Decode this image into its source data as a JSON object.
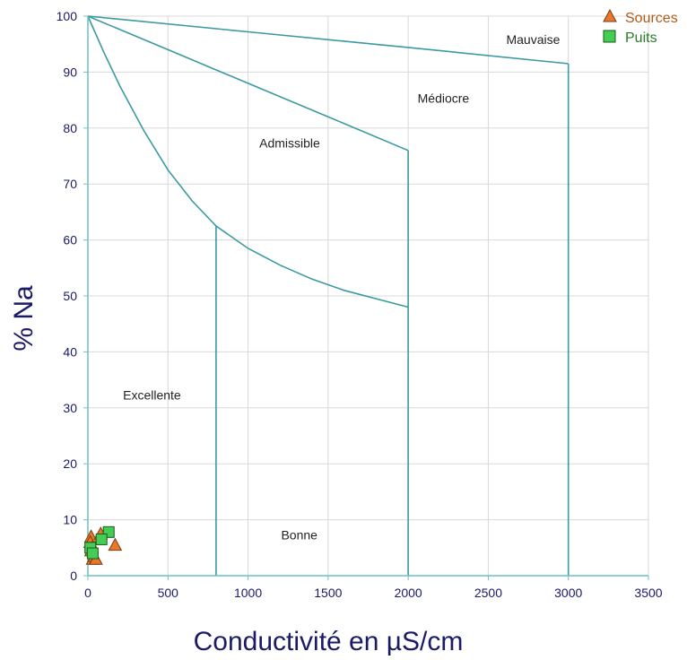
{
  "chart_data": {
    "type": "scatter",
    "title": "",
    "xlabel": "Conductivité en µS/cm",
    "ylabel": "% Na",
    "xlim": [
      0,
      3500
    ],
    "ylim": [
      0,
      100
    ],
    "xticks": [
      0,
      500,
      1000,
      1500,
      2000,
      2500,
      3000,
      3500
    ],
    "yticks": [
      0,
      10,
      20,
      30,
      40,
      50,
      60,
      70,
      80,
      90,
      100
    ],
    "grid": true,
    "legend_position": "top-right",
    "boundaries": [
      {
        "name": "excellente-bonne",
        "points": [
          [
            0,
            100
          ],
          [
            100,
            93.5
          ],
          [
            200,
            87.5
          ],
          [
            350,
            79.5
          ],
          [
            500,
            72.5
          ],
          [
            650,
            67
          ],
          [
            800,
            62.5
          ]
        ]
      },
      {
        "name": "bonne-vertical",
        "points": [
          [
            800,
            62.5
          ],
          [
            800,
            0
          ]
        ]
      },
      {
        "name": "bonne-admissible",
        "points": [
          [
            800,
            62.5
          ],
          [
            1000,
            58.5
          ],
          [
            1200,
            55.5
          ],
          [
            1400,
            53
          ],
          [
            1600,
            51
          ],
          [
            1800,
            49.5
          ],
          [
            2000,
            48
          ]
        ]
      },
      {
        "name": "admissible-mediocre",
        "points": [
          [
            0,
            100
          ],
          [
            500,
            94
          ],
          [
            1000,
            88
          ],
          [
            1500,
            82
          ],
          [
            2000,
            76
          ]
        ]
      },
      {
        "name": "admissible-vertical",
        "points": [
          [
            2000,
            76
          ],
          [
            2000,
            0
          ]
        ]
      },
      {
        "name": "mediocre-mauvaise",
        "points": [
          [
            0,
            100
          ],
          [
            1000,
            97.2
          ],
          [
            2000,
            94.4
          ],
          [
            3000,
            91.5
          ]
        ]
      },
      {
        "name": "mauvaise-vertical",
        "points": [
          [
            3000,
            91.5
          ],
          [
            3000,
            0
          ]
        ]
      }
    ],
    "regions": [
      {
        "label": "Excellente",
        "x": 400,
        "y": 31.5
      },
      {
        "label": "Bonne",
        "x": 1320,
        "y": 6.5
      },
      {
        "label": "Admissible",
        "x": 1260,
        "y": 76.5
      },
      {
        "label": "Médiocre",
        "x": 2220,
        "y": 84.5
      },
      {
        "label": "Mauvaise",
        "x": 2780,
        "y": 95
      }
    ],
    "series": [
      {
        "name": "Sources",
        "marker": "triangle",
        "color": "#e8782c",
        "points": [
          [
            20,
            7
          ],
          [
            15,
            6
          ],
          [
            25,
            5
          ],
          [
            30,
            3
          ],
          [
            40,
            3.5
          ],
          [
            50,
            3
          ],
          [
            80,
            7.5
          ],
          [
            170,
            5.5
          ],
          [
            20,
            4.5
          ]
        ]
      },
      {
        "name": "Puits",
        "marker": "square",
        "color": "#44cc55",
        "points": [
          [
            130,
            7.8
          ],
          [
            85,
            6.5
          ],
          [
            15,
            5
          ],
          [
            30,
            4
          ]
        ]
      }
    ],
    "legend": [
      "Sources",
      "Puits"
    ]
  },
  "colors": {
    "boundary": "#3a9aa0",
    "grid": "#d8d8d8",
    "axis": "#6cc0c6",
    "sources_text": "#b05a1a",
    "puits_text": "#2a7a2a"
  }
}
